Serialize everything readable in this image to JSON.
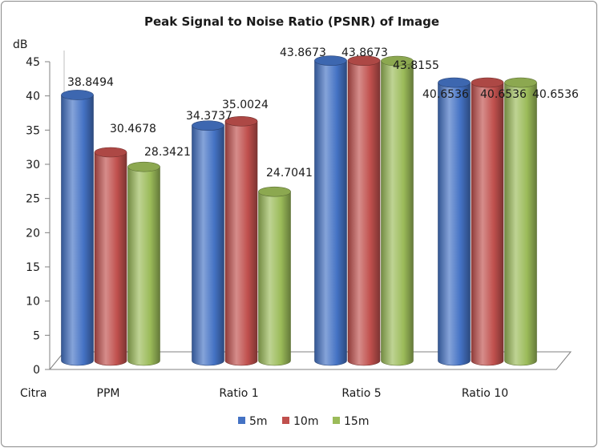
{
  "chart_data": {
    "type": "bar",
    "title": "Peak Signal to Noise Ratio (PSNR) of Image",
    "ylabel": "dB",
    "xlabel": "Citra",
    "ylim": [
      0,
      45
    ],
    "yticks": [
      0,
      5,
      10,
      15,
      20,
      25,
      30,
      35,
      40,
      45
    ],
    "categories": [
      "PPM",
      "Ratio 1",
      "Ratio 5",
      "Ratio 10"
    ],
    "series": [
      {
        "name": "5m",
        "color": "#4472c4",
        "values": [
          38.8494,
          34.3737,
          43.8673,
          40.6536
        ],
        "labels": [
          "38.8494",
          "34.3737",
          "43.8673",
          "40.6536"
        ]
      },
      {
        "name": "10m",
        "color": "#c0504d",
        "values": [
          30.4678,
          35.0024,
          43.8673,
          40.6536
        ],
        "labels": [
          "30.4678",
          "35.0024",
          "43.8673",
          "40.6536"
        ]
      },
      {
        "name": "15m",
        "color": "#9bbb59",
        "values": [
          28.3421,
          24.7041,
          43.8155,
          40.6536
        ],
        "labels": [
          "28.3421",
          "24.7041",
          "43.8155",
          "40.6536"
        ]
      }
    ],
    "legend": "bottom",
    "grid": false
  }
}
